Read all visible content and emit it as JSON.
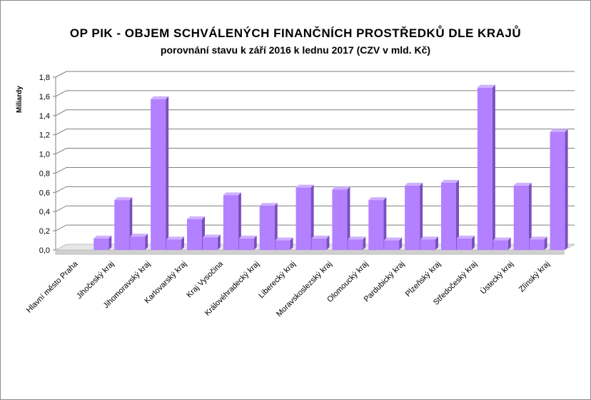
{
  "colors": {
    "front_face": "#b380ff",
    "side_face": "#7a4fbf",
    "top_face": "#cfb0ff",
    "axis": "#808080",
    "grid": "#7f7f7f"
  },
  "chart_data": {
    "type": "bar",
    "title": "OP PIK - OBJEM  SCHVÁLENÝCH  FINANČNÍCH  PROSTŘEDKŮ  DLE KRAJŮ",
    "subtitle": "porovnání stavu k září 2016 k lednu 2017 (CZV v mld. Kč)",
    "xlabel": "",
    "ylabel": "Miliardy",
    "ylim": [
      0,
      1.8
    ],
    "yticks": [
      "0,0",
      "0,2",
      "0,4",
      "0,6",
      "0,8",
      "1,0",
      "1,2",
      "1,4",
      "1,6",
      "1,8"
    ],
    "grid": true,
    "legend": "none",
    "categories": [
      "Hlavní město Praha",
      "Jihočeský kraj",
      "Jihomoravský kraj",
      "Karlovarský kraj",
      "Kraj Vysočina",
      "Královéhradecký kraj",
      "Liberecký kraj",
      "Moravskoslezský kraj",
      "Olomoucký kraj",
      "Pardubický kraj",
      "Plzeňský kraj",
      "Středočeský kraj",
      "Ústecký kraj",
      "Zlínský kraj"
    ],
    "series": [
      {
        "values": [
          0.0,
          0.12,
          0.14,
          0.11,
          0.13,
          0.12,
          0.1,
          0.12,
          0.11,
          0.1,
          0.11,
          0.12,
          0.1,
          0.11
        ]
      },
      {
        "values": [
          0.0,
          0.52,
          1.57,
          0.32,
          0.57,
          0.46,
          0.65,
          0.63,
          0.52,
          0.67,
          0.7,
          1.69,
          0.67,
          1.23
        ]
      }
    ]
  }
}
